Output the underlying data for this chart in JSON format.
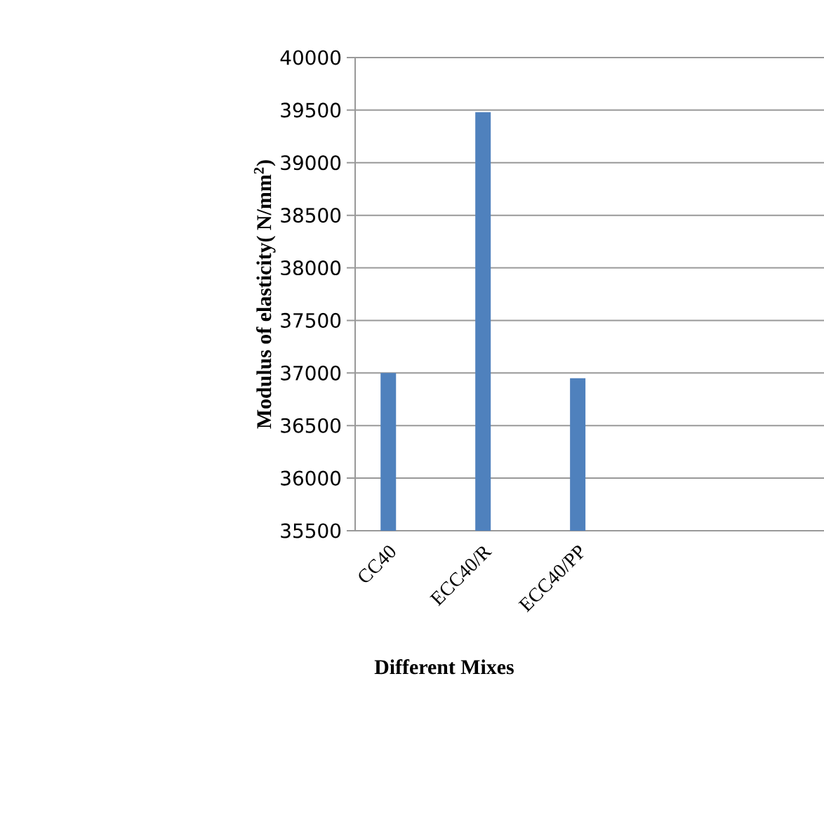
{
  "chart_data": {
    "type": "bar",
    "xlabel": "Different Mixes",
    "ylabel": "Modulus of elasticity( N/mm$^{2}$)",
    "categories": [
      "CC40",
      "ECC40/R",
      "ECC40/PP"
    ],
    "values": [
      37000,
      39480,
      36950
    ],
    "color": "#4f81bd",
    "ylim": [
      35500,
      40000
    ],
    "yticks": [
      35500,
      36000,
      36500,
      37000,
      37500,
      38000,
      38500,
      39000,
      39500,
      40000
    ],
    "grid": "y"
  }
}
